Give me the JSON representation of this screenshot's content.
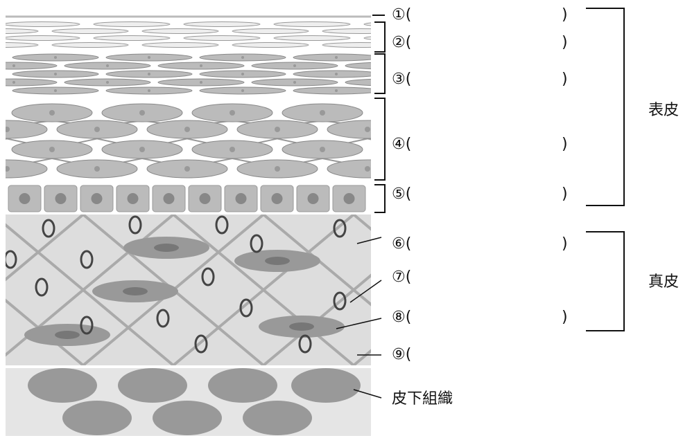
{
  "labels": [
    {
      "text": "①(",
      "close": ")"
    },
    {
      "text": "②(",
      "close": ")"
    },
    {
      "text": "③(",
      "close": ")"
    },
    {
      "text": "④(",
      "close": ")"
    },
    {
      "text": "⑤(",
      "close": ")"
    },
    {
      "text": "⑥(",
      "close": ")"
    },
    {
      "text": "⑦("
    },
    {
      "text": "⑧(",
      "close": ")"
    },
    {
      "text": "⑨("
    }
  ],
  "groups": [
    "表皮",
    "真皮"
  ],
  "subcutaneous": "皮下組織"
}
